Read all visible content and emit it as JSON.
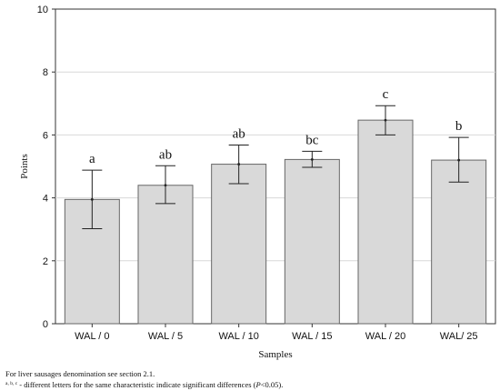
{
  "chart_data": {
    "type": "bar",
    "categories": [
      "WAL / 0",
      "WAL / 5",
      "WAL / 10",
      "WAL / 15",
      "WAL / 20",
      "WAL/ 25"
    ],
    "values": [
      3.95,
      4.4,
      5.07,
      5.22,
      6.47,
      5.2
    ],
    "error_low": [
      3.02,
      3.82,
      4.45,
      4.97,
      6.0,
      4.5
    ],
    "error_high": [
      4.88,
      5.02,
      5.68,
      5.48,
      6.93,
      5.92
    ],
    "significance_letters": [
      "a",
      "ab",
      "ab",
      "bc",
      "c",
      "b"
    ],
    "xlabel": "Samples",
    "ylabel": "Points",
    "ylim": [
      0,
      10
    ],
    "yticks": [
      "0",
      "2",
      "4",
      "6",
      "8",
      "10"
    ],
    "grid": true,
    "bar_color": "#d9d9d9",
    "bar_edge_color": "#666666"
  },
  "footnote": {
    "line1": "For liver sausages denomination see section 2.1.",
    "line2_sup": "a, b, c",
    "line2_text": " - different letters for the same characteristic indicate significant differences (",
    "line2_italic": "P",
    "line2_end": "<0.05)."
  }
}
